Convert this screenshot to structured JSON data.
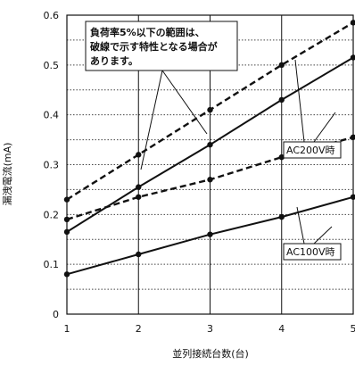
{
  "chart_data": {
    "type": "line",
    "title": "",
    "xlabel": "並列接続台数(台)",
    "ylabel": "漏洩電流(mA)",
    "x": [
      1,
      2,
      3,
      4,
      5
    ],
    "xlim": [
      1,
      5
    ],
    "ylim": [
      0,
      0.6
    ],
    "xticks": [
      "1",
      "2",
      "3",
      "4",
      "5"
    ],
    "yticks": [
      "0",
      "0.1",
      "0.2",
      "0.3",
      "0.4",
      "0.5",
      "0.6"
    ],
    "grid": true,
    "series": [
      {
        "group": "AC200V",
        "style": "solid",
        "values": [
          0.165,
          0.255,
          0.34,
          0.43,
          0.515
        ]
      },
      {
        "group": "AC200V",
        "style": "dashed",
        "values": [
          0.23,
          0.32,
          0.41,
          0.5,
          0.585
        ]
      },
      {
        "group": "AC100V",
        "style": "solid",
        "values": [
          0.08,
          0.12,
          0.16,
          0.195,
          0.235
        ]
      },
      {
        "group": "AC100V",
        "style": "dashed",
        "values": [
          0.19,
          0.235,
          0.27,
          0.315,
          0.355
        ]
      }
    ],
    "annotations": [
      {
        "id": "note",
        "lines": [
          "負荷率5%以下の範囲は、",
          "破線で示す特性となる場合が",
          "あります。"
        ]
      },
      {
        "id": "ac200",
        "text": "AC200V時"
      },
      {
        "id": "ac100",
        "text": "AC100V時"
      }
    ]
  }
}
